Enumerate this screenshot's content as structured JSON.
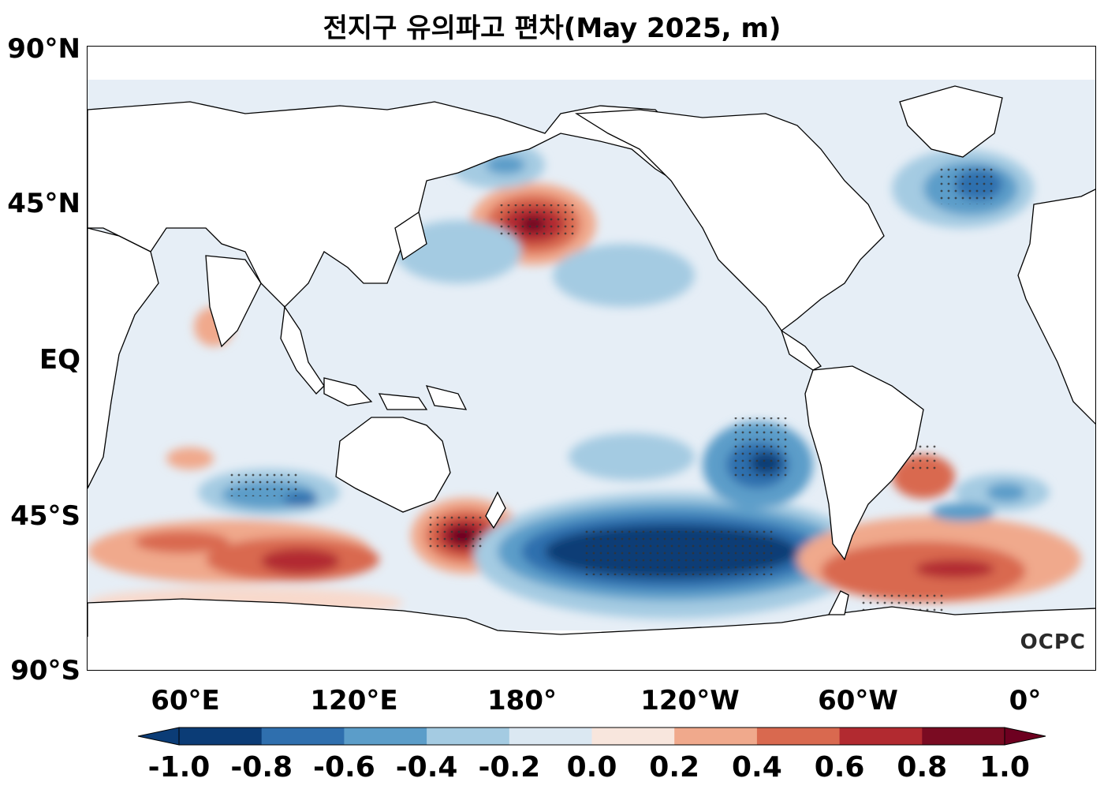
{
  "title": "전지구 유의파고 편차(May 2025, m)",
  "logo": "OCPC",
  "lat_labels": [
    "90°N",
    "45°N",
    "EQ",
    "45°S",
    "90°S"
  ],
  "lon_labels": [
    "60°E",
    "120°E",
    "180°",
    "120°W",
    "60°W",
    "0°"
  ],
  "colorbar": {
    "ticks": [
      "-1.0",
      "-0.8",
      "-0.6",
      "-0.4",
      "-0.2",
      "0.0",
      "0.2",
      "0.4",
      "0.6",
      "0.8",
      "1.0"
    ],
    "colors": [
      "#0b3c76",
      "#2f6fae",
      "#5b9dc9",
      "#a4cbe2",
      "#dbe8f2",
      "#f5f5f5",
      "#f8d9cc",
      "#f0a98c",
      "#d9694f",
      "#b22a30",
      "#6d0020"
    ],
    "extend": "both"
  },
  "map_colors": {
    "ocean_base": "#e6eef6",
    "land": "#ffffff",
    "coastline": "#000000",
    "stipple": "#333333"
  },
  "anomaly_regions": [
    {
      "name": "North Pacific positive",
      "lon": 178,
      "lat": 44,
      "value": 0.9
    },
    {
      "name": "Tasman Sea positive",
      "lon": 160,
      "lat": -48,
      "value": 1.0
    },
    {
      "name": "South Indian positive",
      "lon": 100,
      "lat": -55,
      "value": 0.8
    },
    {
      "name": "South Pacific negative",
      "lon": -120,
      "lat": -58,
      "value": -1.0
    },
    {
      "name": "Southeast Pacific negative",
      "lon": -90,
      "lat": -30,
      "value": -0.8
    },
    {
      "name": "North Atlantic negative",
      "lon": -25,
      "lat": 50,
      "value": -0.7
    },
    {
      "name": "South Atlantic positive",
      "lon": -30,
      "lat": -60,
      "value": 0.7
    },
    {
      "name": "South Indian negative",
      "lon": 85,
      "lat": -38,
      "value": -0.6
    }
  ]
}
